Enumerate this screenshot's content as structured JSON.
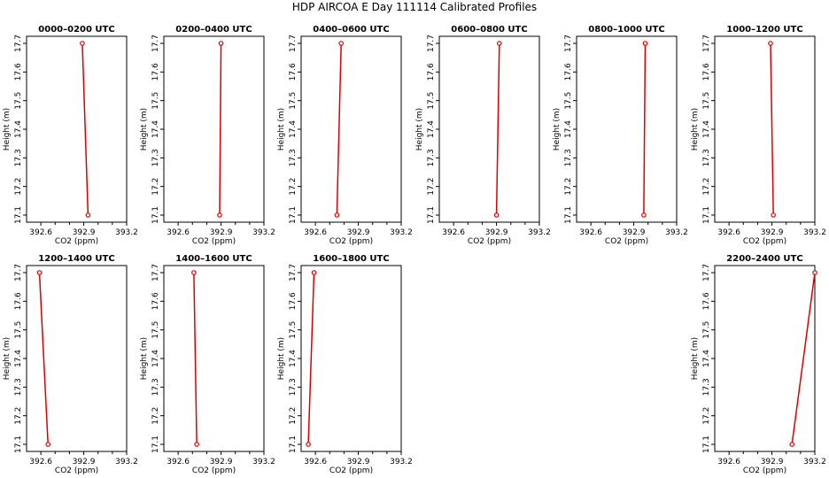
{
  "figure": {
    "title": "HDP AIRCOA E  Day 111114  Calibrated Profiles"
  },
  "chart_data": [
    {
      "type": "line",
      "title": "0000–0200 UTC",
      "xlabel": "CO2 (ppm)",
      "ylabel": "Height (m)",
      "xlim": [
        392.5,
        393.2
      ],
      "ylim": [
        17.1,
        17.7
      ],
      "xticks": [
        "392.6",
        "392.9",
        "393.2"
      ],
      "yticks": [
        "17.1",
        "17.2",
        "17.3",
        "17.4",
        "17.5",
        "17.6",
        "17.7"
      ],
      "x": [
        392.93,
        392.89
      ],
      "y": [
        17.1,
        17.7
      ]
    },
    {
      "type": "line",
      "title": "0200–0400 UTC",
      "xlabel": "CO2 (ppm)",
      "ylabel": "Height (m)",
      "xlim": [
        392.5,
        393.2
      ],
      "ylim": [
        17.1,
        17.7
      ],
      "xticks": [
        "392.6",
        "392.9",
        "393.2"
      ],
      "yticks": [
        "17.1",
        "17.2",
        "17.3",
        "17.4",
        "17.5",
        "17.6",
        "17.7"
      ],
      "x": [
        392.89,
        392.9
      ],
      "y": [
        17.1,
        17.7
      ]
    },
    {
      "type": "line",
      "title": "0400–0600 UTC",
      "xlabel": "CO2 (ppm)",
      "ylabel": "Height (m)",
      "xlim": [
        392.5,
        393.2
      ],
      "ylim": [
        17.1,
        17.7
      ],
      "xticks": [
        "392.6",
        "392.9",
        "393.2"
      ],
      "yticks": [
        "17.1",
        "17.2",
        "17.3",
        "17.4",
        "17.5",
        "17.6",
        "17.7"
      ],
      "x": [
        392.75,
        392.78
      ],
      "y": [
        17.1,
        17.7
      ]
    },
    {
      "type": "line",
      "title": "0600–0800 UTC",
      "xlabel": "CO2 (ppm)",
      "ylabel": "Height (m)",
      "xlim": [
        392.5,
        393.2
      ],
      "ylim": [
        17.1,
        17.7
      ],
      "xticks": [
        "392.6",
        "392.9",
        "393.2"
      ],
      "yticks": [
        "17.1",
        "17.2",
        "17.3",
        "17.4",
        "17.5",
        "17.6",
        "17.7"
      ],
      "x": [
        392.9,
        392.92
      ],
      "y": [
        17.1,
        17.7
      ]
    },
    {
      "type": "line",
      "title": "0800–1000 UTC",
      "xlabel": "CO2 (ppm)",
      "ylabel": "Height (m)",
      "xlim": [
        392.5,
        393.2
      ],
      "ylim": [
        17.1,
        17.7
      ],
      "xticks": [
        "392.6",
        "392.9",
        "393.2"
      ],
      "yticks": [
        "17.1",
        "17.2",
        "17.3",
        "17.4",
        "17.5",
        "17.6",
        "17.7"
      ],
      "x": [
        392.97,
        392.98
      ],
      "y": [
        17.1,
        17.7
      ]
    },
    {
      "type": "line",
      "title": "1000–1200 UTC",
      "xlabel": "CO2 (ppm)",
      "ylabel": "Height (m)",
      "xlim": [
        392.5,
        393.2
      ],
      "ylim": [
        17.1,
        17.7
      ],
      "xticks": [
        "392.6",
        "392.9",
        "393.2"
      ],
      "yticks": [
        "17.1",
        "17.2",
        "17.3",
        "17.4",
        "17.5",
        "17.6",
        "17.7"
      ],
      "x": [
        392.91,
        392.89
      ],
      "y": [
        17.1,
        17.7
      ]
    },
    {
      "type": "line",
      "title": "1200–1400 UTC",
      "xlabel": "CO2 (ppm)",
      "ylabel": "Height (m)",
      "xlim": [
        392.5,
        393.2
      ],
      "ylim": [
        17.1,
        17.7
      ],
      "xticks": [
        "392.6",
        "392.9",
        "393.2"
      ],
      "yticks": [
        "17.1",
        "17.2",
        "17.3",
        "17.4",
        "17.5",
        "17.6",
        "17.7"
      ],
      "x": [
        392.65,
        392.59
      ],
      "y": [
        17.1,
        17.7
      ]
    },
    {
      "type": "line",
      "title": "1400–1600 UTC",
      "xlabel": "CO2 (ppm)",
      "ylabel": "Height (m)",
      "xlim": [
        392.5,
        393.2
      ],
      "ylim": [
        17.1,
        17.7
      ],
      "xticks": [
        "392.6",
        "392.9",
        "393.2"
      ],
      "yticks": [
        "17.1",
        "17.2",
        "17.3",
        "17.4",
        "17.5",
        "17.6",
        "17.7"
      ],
      "x": [
        392.73,
        392.71
      ],
      "y": [
        17.1,
        17.7
      ]
    },
    {
      "type": "line",
      "title": "1600–1800 UTC",
      "xlabel": "CO2 (ppm)",
      "ylabel": "Height (m)",
      "xlim": [
        392.5,
        393.2
      ],
      "ylim": [
        17.1,
        17.7
      ],
      "xticks": [
        "392.6",
        "392.9",
        "393.2"
      ],
      "yticks": [
        "17.1",
        "17.2",
        "17.3",
        "17.4",
        "17.5",
        "17.6",
        "17.7"
      ],
      "x": [
        392.55,
        392.59
      ],
      "y": [
        17.1,
        17.7
      ]
    },
    {
      "type": "line",
      "title": "2200–2400 UTC",
      "xlabel": "CO2 (ppm)",
      "ylabel": "Height (m)",
      "xlim": [
        392.5,
        393.2
      ],
      "ylim": [
        17.1,
        17.7
      ],
      "xticks": [
        "392.6",
        "392.9",
        "393.2"
      ],
      "yticks": [
        "17.1",
        "17.2",
        "17.3",
        "17.4",
        "17.5",
        "17.6",
        "17.7"
      ],
      "x": [
        393.04,
        393.2
      ],
      "y": [
        17.1,
        17.7
      ]
    }
  ],
  "colors": {
    "series": "#dd0000",
    "axis": "#000000",
    "background": "#ffffff"
  }
}
